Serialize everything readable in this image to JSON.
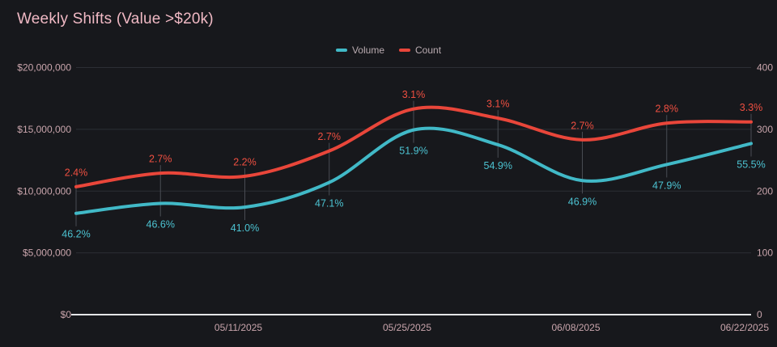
{
  "title": "Weekly Shifts (Value >$20k)",
  "legend": {
    "items": [
      {
        "label": "Volume",
        "color": "#41b9c7"
      },
      {
        "label": "Count",
        "color": "#e9463a"
      }
    ]
  },
  "theme": {
    "background": "#17181c",
    "title_color": "#f0b9c4",
    "axis_text_color": "#c9a5ac",
    "legend_text_color": "#b9abb0",
    "grid_color": "#2c2e34",
    "baseline_color": "#e4e5e7",
    "connector_color": "#494c53"
  },
  "chart_data": {
    "type": "line",
    "title": "Weekly Shifts (Value >$20k)",
    "x_tick_labels": [
      "05/11/2025",
      "05/25/2025",
      "06/08/2025",
      "06/22/2025"
    ],
    "x_tick_point_indices": [
      2,
      4,
      6,
      8
    ],
    "left_axis": {
      "min": 0,
      "max": 20000000,
      "tick_labels": [
        "$20,000,000",
        "$15,000,000",
        "$10,000,000",
        "$5,000,000",
        "$0"
      ]
    },
    "right_axis": {
      "min": 0,
      "max": 400,
      "tick_labels": [
        "400",
        "300",
        "200",
        "100",
        "0"
      ]
    },
    "grid": "horizontal",
    "legend_position": "top-center",
    "series": [
      {
        "name": "Volume",
        "axis": "left",
        "color": "#41b9c7",
        "label_color": "#4cc3d2",
        "label_side": "below",
        "values": [
          8200000,
          9000000,
          8700000,
          10700000,
          14950000,
          13750000,
          10850000,
          12150000,
          13850000
        ],
        "point_labels": [
          "46.2%",
          "46.6%",
          "41.0%",
          "47.1%",
          "51.9%",
          "54.9%",
          "46.9%",
          "47.9%",
          "55.5%"
        ]
      },
      {
        "name": "Count",
        "axis": "right",
        "color": "#e9463a",
        "label_color": "#ef4f41",
        "label_side": "above",
        "values": [
          207,
          229,
          224,
          265,
          333,
          318,
          283,
          310,
          312
        ],
        "point_labels": [
          "2.4%",
          "2.7%",
          "2.2%",
          "2.7%",
          "3.1%",
          "3.1%",
          "2.7%",
          "2.8%",
          "3.3%"
        ]
      }
    ]
  }
}
